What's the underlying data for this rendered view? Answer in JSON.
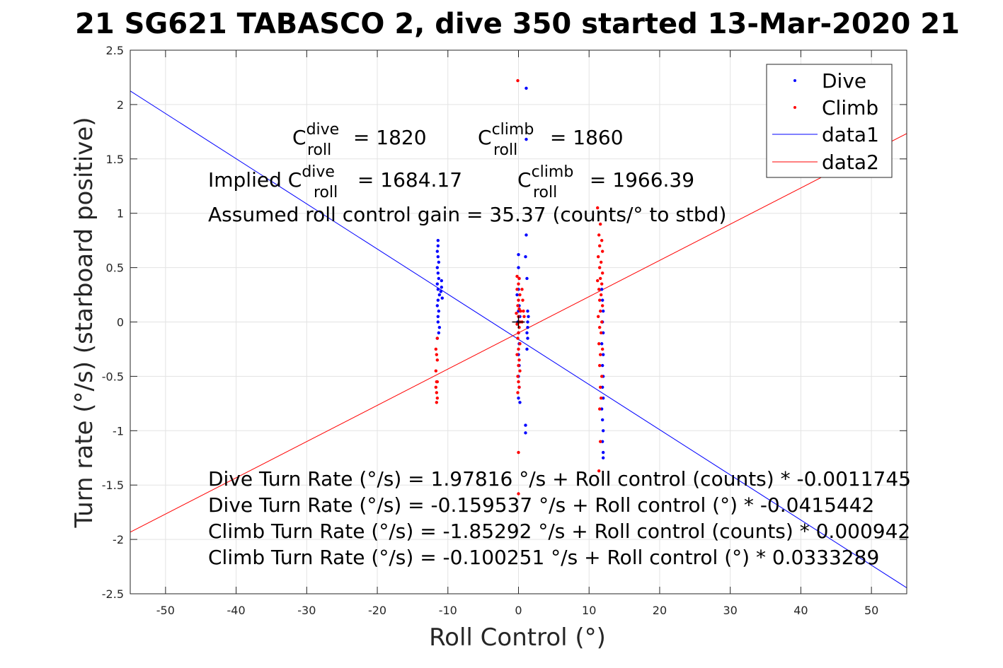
{
  "chart_data": {
    "type": "scatter",
    "title": "21 SG621 TABASCO 2, dive 350 started 13-Mar-2020 21",
    "xlabel": "Roll Control (°)",
    "ylabel": "Turn rate (°/s) (starboard positive)",
    "xlim": [
      -55,
      55
    ],
    "ylim": [
      -2.5,
      2.5
    ],
    "xticks": [
      -50,
      -40,
      -30,
      -20,
      -10,
      0,
      10,
      20,
      30,
      40,
      50
    ],
    "yticks": [
      -2.5,
      -2,
      -1.5,
      -1,
      -0.5,
      0,
      0.5,
      1,
      1.5,
      2,
      2.5
    ],
    "xtick_labels": [
      "-50",
      "-40",
      "-30",
      "-20",
      "-10",
      "0",
      "10",
      "20",
      "30",
      "40",
      "50"
    ],
    "ytick_labels": [
      "-2.5",
      "-2",
      "-1.5",
      "-1",
      "-0.5",
      "0",
      "0.5",
      "1",
      "1.5",
      "2",
      "2.5"
    ],
    "grid": true,
    "legend_position": "top-right",
    "series": [
      {
        "name": "Dive",
        "kind": "points",
        "color": "#0000ff",
        "points": [
          [
            -11.4,
            0.75
          ],
          [
            -11.4,
            0.7
          ],
          [
            -11.5,
            0.65
          ],
          [
            -11.4,
            0.6
          ],
          [
            -11.3,
            0.55
          ],
          [
            -11.5,
            0.5
          ],
          [
            -11.4,
            0.45
          ],
          [
            -11.3,
            0.4
          ],
          [
            -11.5,
            0.35
          ],
          [
            -11.4,
            0.3
          ],
          [
            -11.2,
            0.25
          ],
          [
            -11.4,
            0.2
          ],
          [
            -11.5,
            0.15
          ],
          [
            -11.3,
            0.1
          ],
          [
            -11.4,
            0.05
          ],
          [
            -11.4,
            0.0
          ],
          [
            -11.2,
            -0.05
          ],
          [
            -11.3,
            -0.1
          ],
          [
            -11.5,
            -0.15
          ],
          [
            -10.9,
            0.38
          ],
          [
            -10.9,
            0.32
          ],
          [
            -11.0,
            0.28
          ],
          [
            -10.8,
            0.22
          ],
          [
            0.0,
            0.62
          ],
          [
            0.0,
            0.5
          ],
          [
            0.1,
            0.4
          ],
          [
            0.0,
            0.3
          ],
          [
            -0.2,
            0.25
          ],
          [
            0.1,
            0.15
          ],
          [
            0.0,
            0.1
          ],
          [
            0.2,
            0.05
          ],
          [
            -0.1,
            0.0
          ],
          [
            0.0,
            -0.1
          ],
          [
            0.1,
            -0.2
          ],
          [
            0.0,
            -0.3
          ],
          [
            0.1,
            -0.4
          ],
          [
            0.0,
            -0.5
          ],
          [
            0.1,
            -0.6
          ],
          [
            0.0,
            -0.7
          ],
          [
            0.2,
            -0.74
          ],
          [
            1.1,
            2.15
          ],
          [
            1.1,
            1.68
          ],
          [
            1.1,
            0.8
          ],
          [
            1.0,
            0.6
          ],
          [
            1.2,
            0.4
          ],
          [
            1.3,
            0.1
          ],
          [
            1.4,
            0.05
          ],
          [
            1.3,
            0.0
          ],
          [
            1.3,
            -0.05
          ],
          [
            1.2,
            -0.1
          ],
          [
            1.3,
            -0.15
          ],
          [
            1.2,
            -0.25
          ],
          [
            1.0,
            -0.95
          ],
          [
            1.0,
            -1.02
          ],
          [
            11.8,
            0.3
          ],
          [
            11.9,
            0.2
          ],
          [
            12.0,
            0.1
          ],
          [
            11.9,
            0.0
          ],
          [
            12.0,
            -0.1
          ],
          [
            11.8,
            -0.2
          ],
          [
            12.0,
            -0.3
          ],
          [
            11.9,
            -0.4
          ],
          [
            12.0,
            -0.5
          ],
          [
            11.9,
            -0.6
          ],
          [
            12.0,
            -0.7
          ],
          [
            11.8,
            -0.8
          ],
          [
            11.9,
            -0.9
          ],
          [
            12.0,
            -1.0
          ],
          [
            11.9,
            -1.1
          ],
          [
            12.0,
            -1.2
          ],
          [
            12.0,
            -1.25
          ]
        ]
      },
      {
        "name": "Climb",
        "kind": "points",
        "color": "#ff0000",
        "points": [
          [
            -11.5,
            -0.15
          ],
          [
            -11.7,
            -0.25
          ],
          [
            -11.6,
            -0.3
          ],
          [
            -11.5,
            -0.35
          ],
          [
            -11.7,
            -0.45
          ],
          [
            -11.6,
            -0.55
          ],
          [
            -11.5,
            -0.55
          ],
          [
            -11.7,
            -0.6
          ],
          [
            -11.6,
            -0.65
          ],
          [
            -11.5,
            -0.7
          ],
          [
            -11.6,
            -0.74
          ],
          [
            -0.1,
            2.22
          ],
          [
            -0.2,
            0.42
          ],
          [
            0.1,
            0.4
          ],
          [
            0.0,
            0.35
          ],
          [
            -0.2,
            0.3
          ],
          [
            0.2,
            0.25
          ],
          [
            0.0,
            0.2
          ],
          [
            -0.1,
            0.15
          ],
          [
            0.1,
            0.12
          ],
          [
            0.3,
            0.1
          ],
          [
            -0.3,
            0.08
          ],
          [
            0.0,
            0.05
          ],
          [
            0.2,
            0.0
          ],
          [
            -0.2,
            -0.02
          ],
          [
            0.1,
            -0.05
          ],
          [
            0.0,
            -0.1
          ],
          [
            -0.1,
            -0.15
          ],
          [
            0.2,
            -0.2
          ],
          [
            0.0,
            -0.25
          ],
          [
            -0.2,
            -0.3
          ],
          [
            0.1,
            -0.35
          ],
          [
            0.0,
            -0.4
          ],
          [
            0.2,
            -0.45
          ],
          [
            -0.1,
            -0.5
          ],
          [
            0.0,
            -0.55
          ],
          [
            0.1,
            -0.6
          ],
          [
            -0.1,
            -0.65
          ],
          [
            0.0,
            -1.2
          ],
          [
            0.0,
            -1.58
          ],
          [
            0.5,
            0.3
          ],
          [
            0.6,
            0.2
          ],
          [
            0.7,
            0.1
          ],
          [
            0.5,
            0.0
          ],
          [
            0.8,
            0.05
          ],
          [
            11.2,
            1.05
          ],
          [
            11.6,
            0.9
          ],
          [
            11.4,
            0.8
          ],
          [
            11.8,
            0.75
          ],
          [
            11.5,
            0.7
          ],
          [
            11.9,
            0.65
          ],
          [
            11.3,
            0.6
          ],
          [
            11.7,
            0.55
          ],
          [
            11.5,
            0.5
          ],
          [
            11.9,
            0.45
          ],
          [
            11.6,
            0.4
          ],
          [
            11.2,
            0.38
          ],
          [
            11.8,
            0.35
          ],
          [
            11.4,
            0.3
          ],
          [
            11.7,
            0.25
          ],
          [
            11.5,
            0.2
          ],
          [
            11.9,
            0.15
          ],
          [
            11.6,
            0.1
          ],
          [
            11.3,
            0.05
          ],
          [
            11.8,
            0.0
          ],
          [
            11.5,
            -0.05
          ],
          [
            11.7,
            -0.1
          ],
          [
            11.4,
            -0.2
          ],
          [
            11.9,
            -0.25
          ],
          [
            11.6,
            -0.3
          ],
          [
            11.5,
            -0.4
          ],
          [
            11.8,
            -0.5
          ],
          [
            11.6,
            -0.6
          ],
          [
            11.7,
            -0.7
          ],
          [
            11.5,
            -0.8
          ],
          [
            11.6,
            -1.1
          ],
          [
            11.4,
            -1.37
          ]
        ]
      },
      {
        "name": "data1",
        "kind": "line",
        "color": "#0000ff",
        "x": [
          -55,
          55
        ],
        "y": [
          2.125,
          -2.445
        ]
      },
      {
        "name": "data2",
        "kind": "line",
        "color": "#ff0000",
        "x": [
          -55,
          55
        ],
        "y": [
          -1.933,
          1.733
        ]
      }
    ],
    "marker": {
      "x": 0,
      "y": 0,
      "symbol": "+"
    },
    "annotations": {
      "c_dive_label": "C",
      "c_dive_sup": "dive",
      "c_dive_sub": "roll",
      "c_dive_value": " = 1820",
      "c_climb_label": "C",
      "c_climb_sup": "climb",
      "c_climb_sub": "roll",
      "c_climb_value": " = 1860",
      "implied_prefix": "Implied C",
      "implied_dive_sup": "dive",
      "implied_dive_sub": "roll",
      "implied_dive_value": " = 1684.17",
      "implied_climb_label": "C",
      "implied_climb_sup": "climb",
      "implied_climb_sub": "roll",
      "implied_climb_value": " = 1966.39",
      "gain": "Assumed roll control gain = 35.37 (counts/° to stbd)",
      "eq1": "Dive Turn Rate (°/s) = 1.97816 °/s + Roll control (counts) * -0.0011745",
      "eq2": "Dive Turn Rate (°/s) = -0.159537 °/s + Roll control (°) * -0.0415442",
      "eq3": "Climb Turn Rate (°/s) = -1.85292 °/s + Roll control (counts) * 0.000942",
      "eq4": "Climb Turn Rate (°/s) = -0.100251 °/s + Roll control (°) * 0.0333289"
    }
  }
}
